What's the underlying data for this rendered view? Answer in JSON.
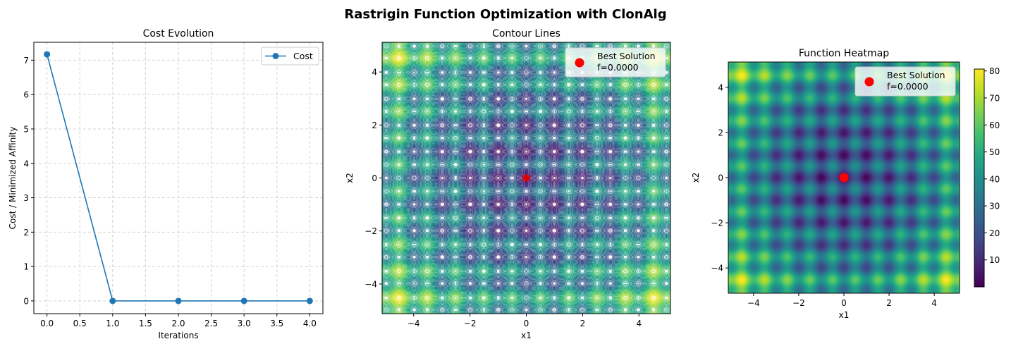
{
  "suptitle": "Rastrigin Function Optimization with ClonAlg",
  "chart_data": [
    {
      "type": "line",
      "title": "Cost Evolution",
      "xlabel": "Iterations",
      "ylabel": "Cost / Minimized Affinity",
      "x": [
        0,
        1,
        2,
        3,
        4
      ],
      "series": [
        {
          "name": "Cost",
          "values": [
            7.17,
            0,
            0,
            0,
            0
          ],
          "color": "#1f77b4"
        }
      ],
      "xlim": [
        -0.2,
        4.2
      ],
      "ylim": [
        -0.37,
        7.52
      ],
      "xticks": [
        0.0,
        0.5,
        1.0,
        1.5,
        2.0,
        2.5,
        3.0,
        3.5,
        4.0
      ],
      "xtick_labels": [
        "0.0",
        "0.5",
        "1.0",
        "1.5",
        "2.0",
        "2.5",
        "3.0",
        "3.5",
        "4.0"
      ],
      "yticks": [
        0,
        1,
        2,
        3,
        4,
        5,
        6,
        7
      ],
      "ytick_labels": [
        "0",
        "1",
        "2",
        "3",
        "4",
        "5",
        "6",
        "7"
      ],
      "grid": true,
      "legend": "top-right"
    },
    {
      "type": "contour",
      "title": "Contour Lines",
      "xlabel": "x1",
      "ylabel": "x2",
      "xlim": [
        -5.12,
        5.12
      ],
      "ylim": [
        -5.12,
        5.12
      ],
      "levels": 50,
      "zrange": [
        0,
        80.7
      ],
      "colormap": "viridis",
      "xticks": [
        -4,
        -2,
        0,
        2,
        4
      ],
      "xtick_labels": [
        "−4",
        "−2",
        "0",
        "2",
        "4"
      ],
      "yticks": [
        -4,
        -2,
        0,
        2,
        4
      ],
      "ytick_labels": [
        "−4",
        "−2",
        "0",
        "2",
        "4"
      ],
      "best_solution": {
        "x1": 0,
        "x2": 0,
        "label": "Best Solution",
        "value_label": "f=0.0000",
        "color": "#ff0000"
      },
      "legend": "top-right"
    },
    {
      "type": "heatmap",
      "title": "Function Heatmap",
      "xlabel": "x1",
      "ylabel": "x2",
      "xlim": [
        -5.12,
        5.12
      ],
      "ylim": [
        -5.12,
        5.12
      ],
      "zrange": [
        0,
        80.7
      ],
      "colormap": "viridis",
      "xticks": [
        -4,
        -2,
        0,
        2,
        4
      ],
      "xtick_labels": [
        "−4",
        "−2",
        "0",
        "2",
        "4"
      ],
      "yticks": [
        -4,
        -2,
        0,
        2,
        4
      ],
      "ytick_labels": [
        "−4",
        "−2",
        "0",
        "2",
        "4"
      ],
      "colorbar_ticks": [
        10,
        20,
        30,
        40,
        50,
        60,
        70,
        80
      ],
      "colorbar_tick_labels": [
        "10",
        "20",
        "30",
        "40",
        "50",
        "60",
        "70",
        "80"
      ],
      "best_solution": {
        "x1": 0,
        "x2": 0,
        "label": "Best Solution",
        "value_label": "f=0.0000",
        "color": "#ff0000"
      },
      "legend": "top-right"
    }
  ]
}
